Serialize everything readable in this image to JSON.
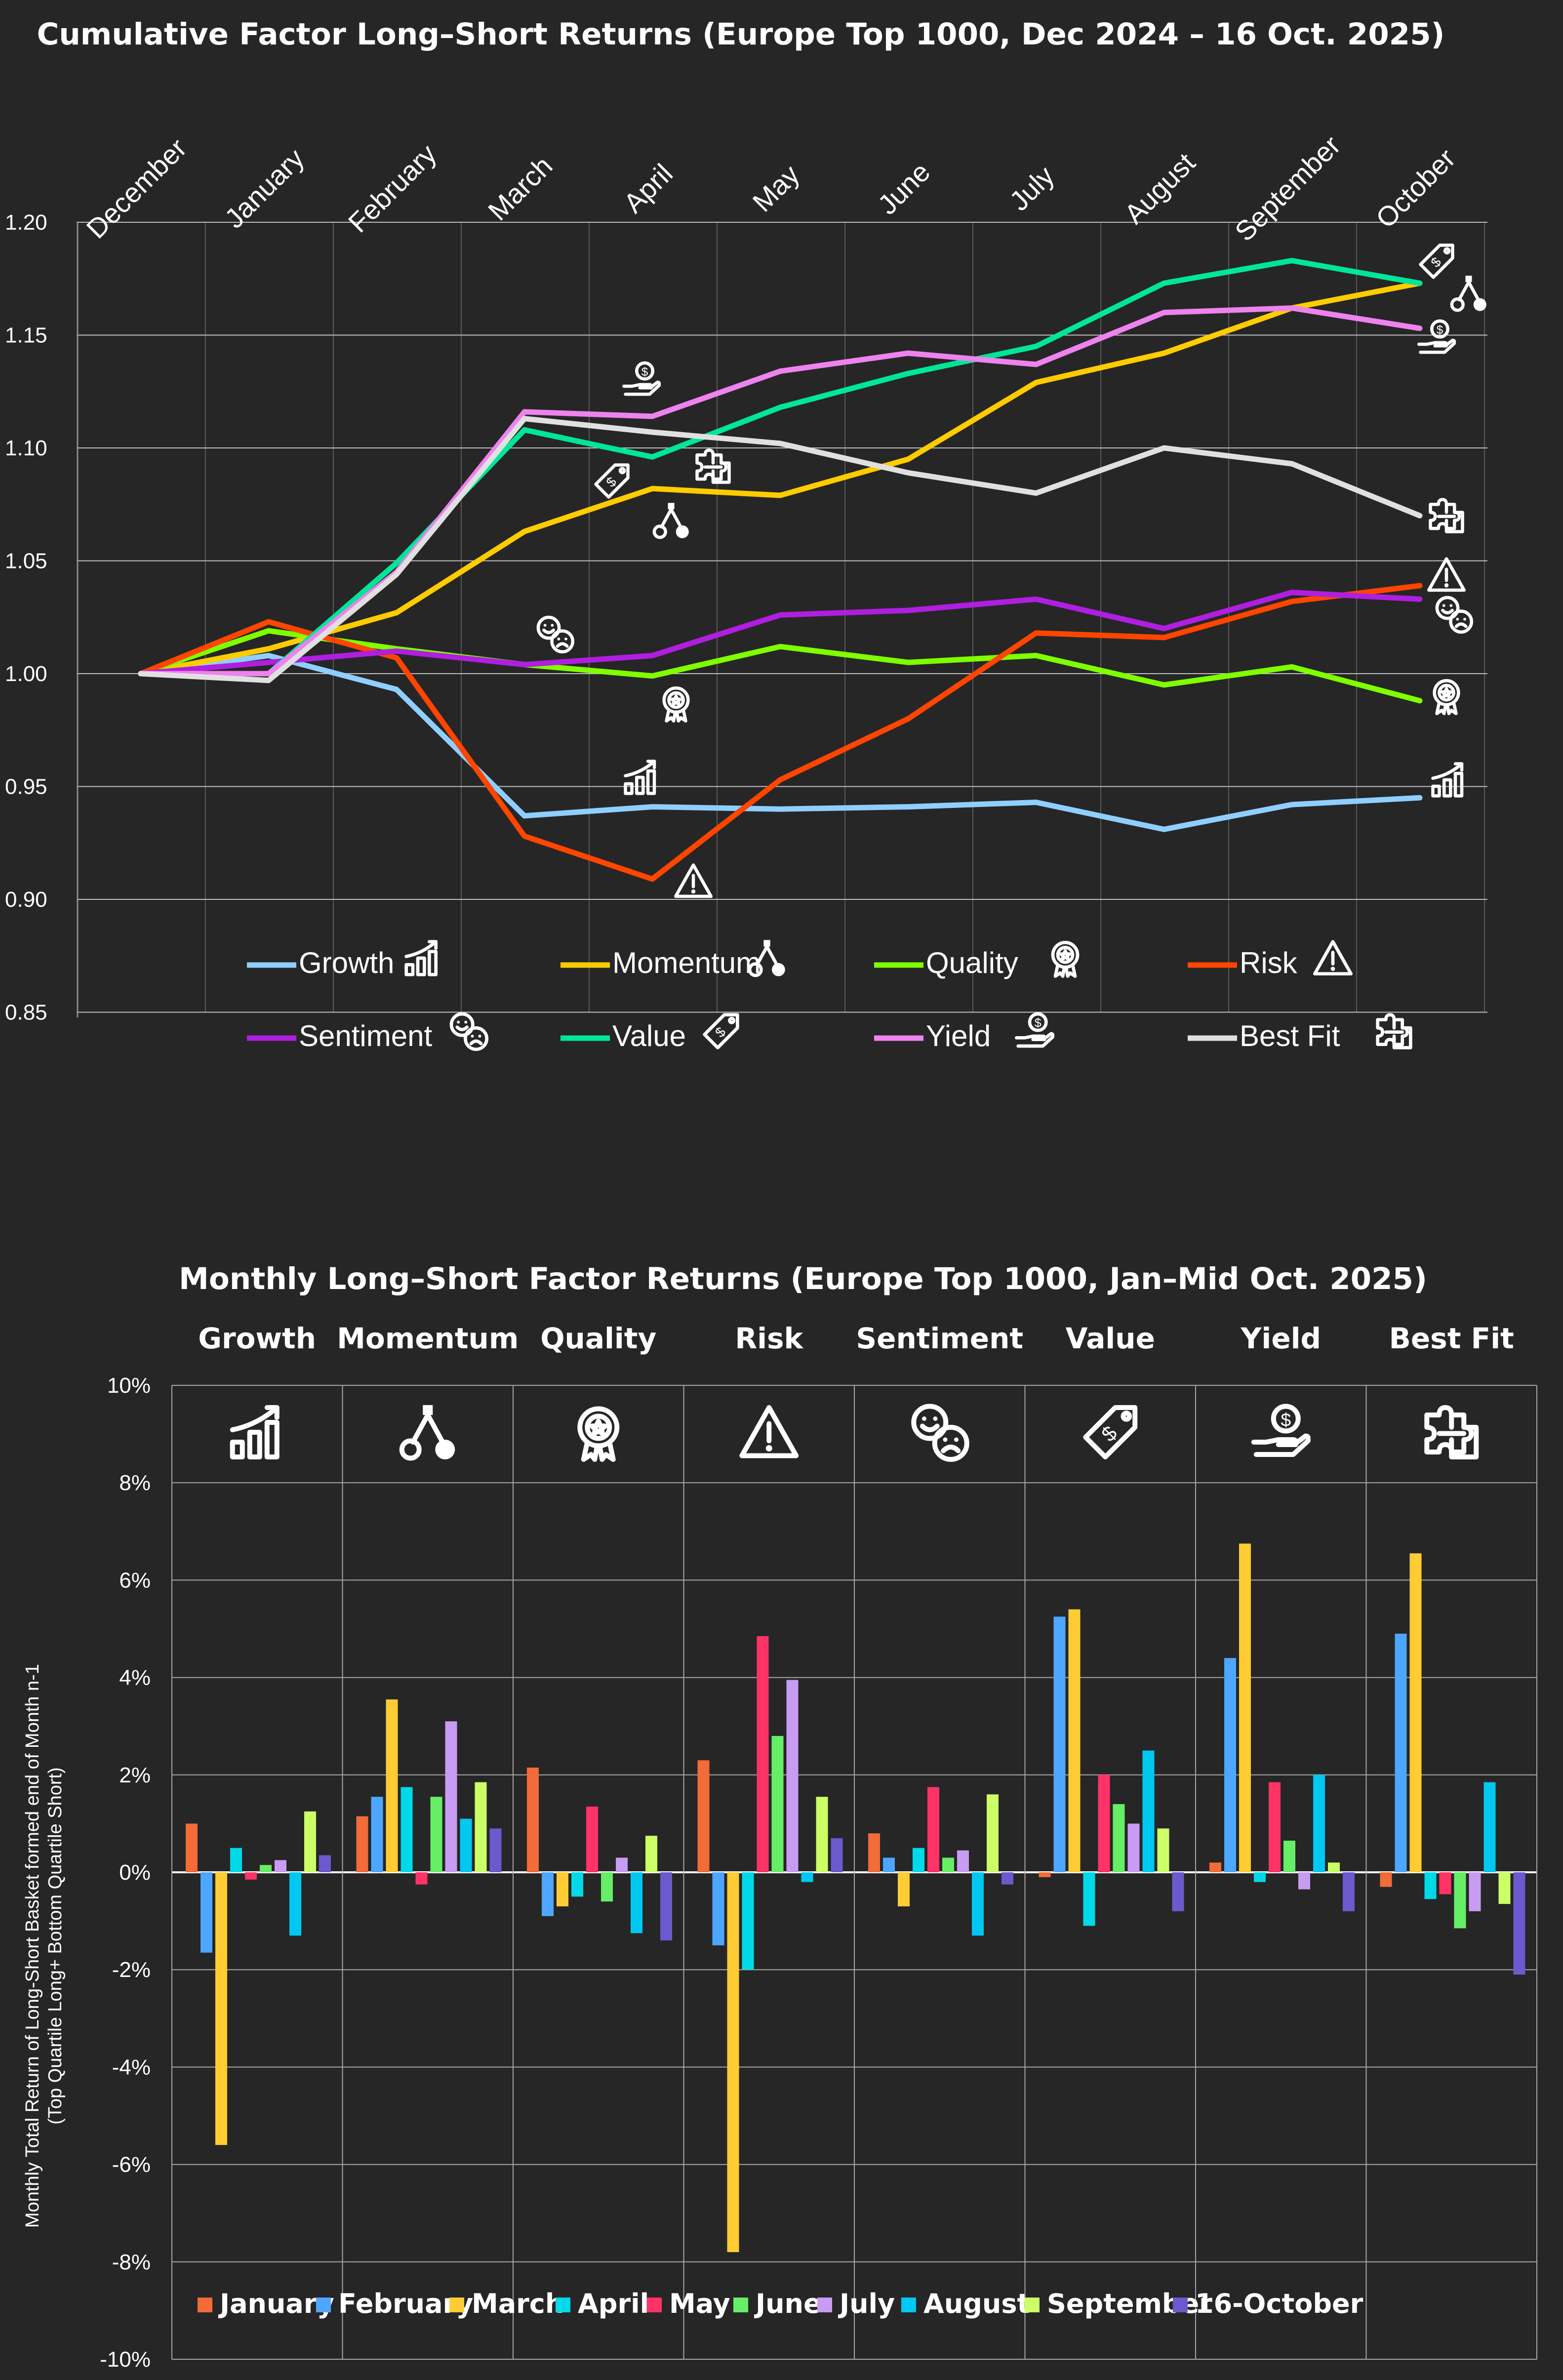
{
  "chart_data": [
    {
      "type": "line",
      "title": "Cumulative Factor Long–Short Returns (Europe Top 1000, Dec 2024 – 16 Oct. 2025)",
      "categories": [
        "December",
        "January",
        "February",
        "March",
        "April",
        "May",
        "June",
        "July",
        "August",
        "September",
        "October"
      ],
      "ylim": [
        0.85,
        1.2
      ],
      "yticks": [
        "1.20",
        "1.15",
        "1.10",
        "1.05",
        "1.00",
        "0.95",
        "0.90",
        "0.85"
      ],
      "ytick_values": [
        1.2,
        1.15,
        1.1,
        1.05,
        1.0,
        0.95,
        0.9,
        0.85
      ],
      "legend": "bottom",
      "series": [
        {
          "name": "Growth",
          "icon": "growth-chart-icon",
          "color": "#8ecfff",
          "values": [
            1.0,
            1.008,
            0.993,
            0.937,
            0.941,
            0.94,
            0.941,
            0.943,
            0.931,
            0.942,
            0.945
          ]
        },
        {
          "name": "Momentum",
          "icon": "momentum-nodes-icon",
          "color": "#ffcc00",
          "values": [
            1.0,
            1.011,
            1.027,
            1.063,
            1.082,
            1.079,
            1.095,
            1.129,
            1.142,
            1.162,
            1.173
          ]
        },
        {
          "name": "Quality",
          "icon": "quality-award-icon",
          "color": "#7fff00",
          "values": [
            1.0,
            1.019,
            1.011,
            1.004,
            0.999,
            1.012,
            1.005,
            1.008,
            0.995,
            1.003,
            0.988
          ]
        },
        {
          "name": "Risk",
          "icon": "risk-warning-icon",
          "color": "#ff4500",
          "values": [
            1.0,
            1.023,
            1.007,
            0.928,
            0.909,
            0.953,
            0.98,
            1.018,
            1.016,
            1.032,
            1.039
          ]
        },
        {
          "name": "Sentiment",
          "icon": "sentiment-faces-icon",
          "color": "#b01ee0",
          "values": [
            1.0,
            1.005,
            1.01,
            1.004,
            1.008,
            1.026,
            1.028,
            1.033,
            1.02,
            1.036,
            1.033
          ]
        },
        {
          "name": "Value",
          "icon": "value-tag-icon",
          "color": "#00e699",
          "values": [
            1.0,
            1.0,
            1.049,
            1.108,
            1.096,
            1.118,
            1.133,
            1.145,
            1.173,
            1.183,
            1.173
          ]
        },
        {
          "name": "Yield",
          "icon": "yield-hand-coin-icon",
          "color": "#ee82ee",
          "values": [
            1.0,
            1.0,
            1.045,
            1.116,
            1.114,
            1.134,
            1.142,
            1.137,
            1.16,
            1.162,
            1.153
          ]
        },
        {
          "name": "Best Fit",
          "icon": "best-fit-puzzle-icon",
          "color": "#e0e0e0",
          "values": [
            1.0,
            0.997,
            1.044,
            1.113,
            1.107,
            1.102,
            1.089,
            1.08,
            1.1,
            1.093,
            1.07
          ]
        }
      ]
    },
    {
      "type": "bar",
      "title": "Monthly Long–Short Factor Returns (Europe Top 1000, Jan–Mid Oct. 2025)",
      "ylabel_line1": "Monthly Total Return of Long-Short Basket formed end of Month n-1",
      "ylabel_line2": "(Top Quartile Long+ Bottom Quartile Short)",
      "ylim": [
        -10,
        10
      ],
      "yticks": [
        "10%",
        "8%",
        "6%",
        "4%",
        "2%",
        "0%",
        "-2%",
        "-4%",
        "-6%",
        "-8%",
        "-10%"
      ],
      "ytick_values": [
        10,
        8,
        6,
        4,
        2,
        0,
        -2,
        -4,
        -6,
        -8,
        -10
      ],
      "categories": [
        "Growth",
        "Momentum",
        "Quality",
        "Risk",
        "Sentiment",
        "Value",
        "Yield",
        "Best Fit"
      ],
      "category_icons": [
        "growth-chart-icon",
        "momentum-nodes-icon",
        "quality-award-icon",
        "risk-warning-icon",
        "sentiment-faces-icon",
        "value-tag-icon",
        "yield-hand-coin-icon",
        "best-fit-puzzle-icon"
      ],
      "legend": "bottom",
      "series": [
        {
          "name": "January",
          "color": "#f26b38",
          "values": [
            1.0,
            1.15,
            2.15,
            2.3,
            0.8,
            -0.1,
            0.2,
            -0.3
          ]
        },
        {
          "name": "February",
          "color": "#4da6ff",
          "values": [
            -1.65,
            1.55,
            -0.9,
            -1.5,
            0.3,
            5.25,
            4.4,
            4.9
          ]
        },
        {
          "name": "March",
          "color": "#ffcc33",
          "values": [
            -5.6,
            3.55,
            -0.7,
            -7.8,
            -0.7,
            5.4,
            6.75,
            6.55
          ]
        },
        {
          "name": "April",
          "color": "#00d9e8",
          "values": [
            0.5,
            1.75,
            -0.5,
            -2.0,
            0.5,
            -1.1,
            -0.2,
            -0.55
          ]
        },
        {
          "name": "May",
          "color": "#ff3366",
          "values": [
            -0.15,
            -0.25,
            1.35,
            4.85,
            1.75,
            2.0,
            1.85,
            -0.45
          ]
        },
        {
          "name": "June",
          "color": "#66ee66",
          "values": [
            0.15,
            1.55,
            -0.6,
            2.8,
            0.3,
            1.4,
            0.65,
            -1.15
          ]
        },
        {
          "name": "July",
          "color": "#c79cf2",
          "values": [
            0.25,
            3.1,
            0.3,
            3.95,
            0.45,
            1.0,
            -0.35,
            -0.8
          ]
        },
        {
          "name": "August",
          "color": "#00c8f0",
          "values": [
            -1.3,
            1.1,
            -1.25,
            -0.2,
            -1.3,
            2.5,
            2.0,
            1.85
          ]
        },
        {
          "name": "September",
          "color": "#ccff66",
          "values": [
            1.25,
            1.85,
            0.75,
            1.55,
            1.6,
            0.9,
            0.2,
            -0.65
          ]
        },
        {
          "name": "16-October",
          "color": "#6a5acd",
          "values": [
            0.35,
            0.9,
            -1.4,
            0.7,
            -0.25,
            -0.8,
            -0.8,
            -2.1
          ]
        }
      ]
    }
  ]
}
